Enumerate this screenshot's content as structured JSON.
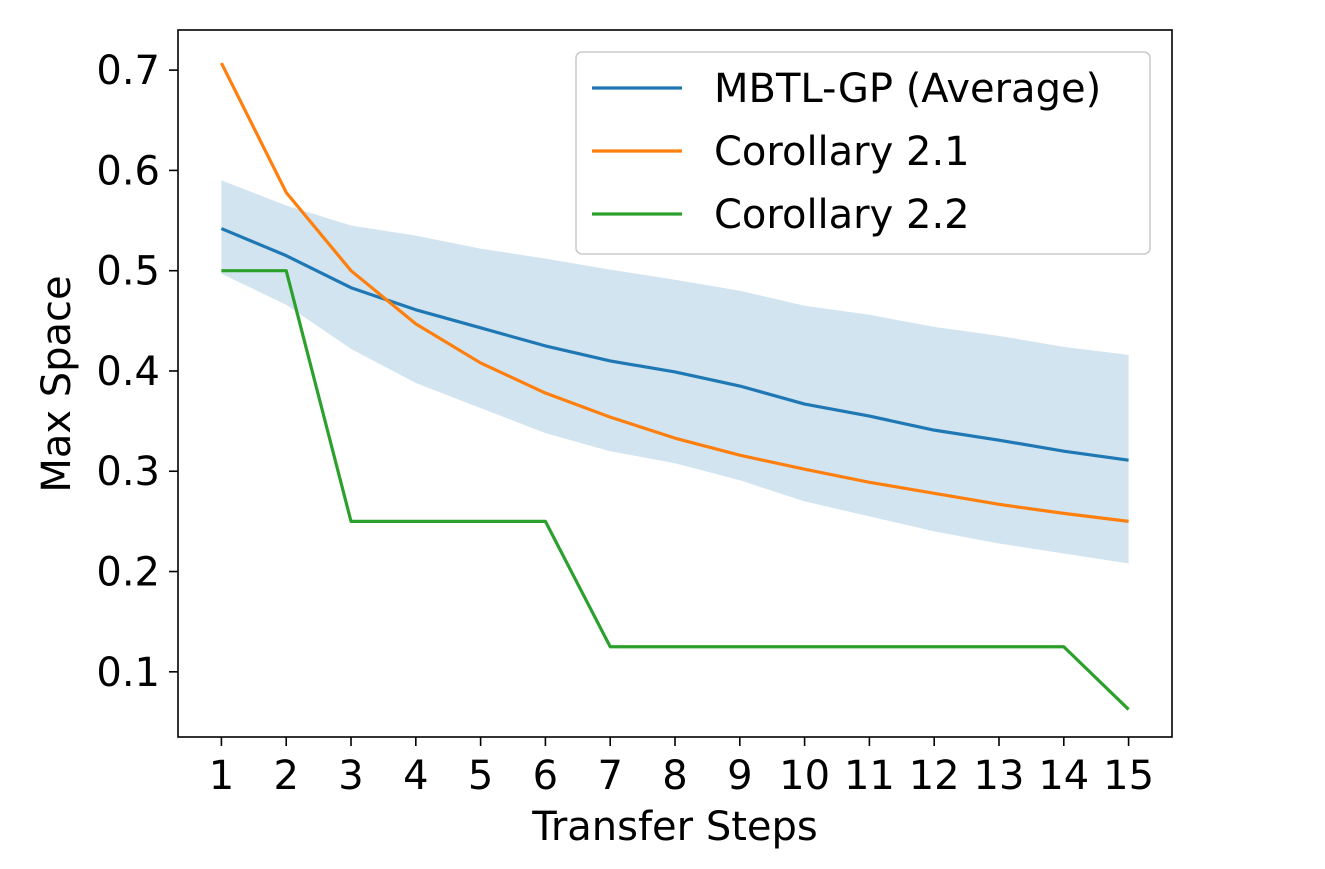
{
  "chart_data": {
    "type": "line",
    "title": "",
    "xlabel": "Transfer Steps",
    "ylabel": "Max Space",
    "x": [
      1,
      2,
      3,
      4,
      5,
      6,
      7,
      8,
      9,
      10,
      11,
      12,
      13,
      14,
      15
    ],
    "xlim": [
      0.33,
      15.67
    ],
    "ylim": [
      0.035,
      0.74
    ],
    "yticks": [
      0.1,
      0.2,
      0.3,
      0.4,
      0.5,
      0.6,
      0.7
    ],
    "ytick_labels": [
      "0.1",
      "0.2",
      "0.3",
      "0.4",
      "0.5",
      "0.6",
      "0.7"
    ],
    "xtick_labels": [
      "1",
      "2",
      "3",
      "4",
      "5",
      "6",
      "7",
      "8",
      "9",
      "10",
      "11",
      "12",
      "13",
      "14",
      "15"
    ],
    "grid": false,
    "legend_position": "top-right",
    "series": [
      {
        "name": "MBTL-GP (Average)",
        "color": "#1f77b4",
        "values": [
          0.542,
          0.515,
          0.483,
          0.461,
          0.443,
          0.425,
          0.41,
          0.399,
          0.385,
          0.367,
          0.355,
          0.341,
          0.331,
          0.32,
          0.311
        ],
        "band_upper": [
          0.59,
          0.565,
          0.545,
          0.535,
          0.522,
          0.512,
          0.501,
          0.491,
          0.48,
          0.465,
          0.456,
          0.444,
          0.435,
          0.424,
          0.416
        ],
        "band_lower": [
          0.497,
          0.466,
          0.422,
          0.388,
          0.363,
          0.338,
          0.32,
          0.308,
          0.291,
          0.27,
          0.255,
          0.24,
          0.228,
          0.218,
          0.208
        ],
        "band_color": "#1f77b4"
      },
      {
        "name": "Corollary 2.1",
        "color": "#ff7f0e",
        "values": [
          0.707,
          0.578,
          0.5,
          0.447,
          0.408,
          0.378,
          0.354,
          0.333,
          0.316,
          0.302,
          0.289,
          0.278,
          0.267,
          0.258,
          0.25
        ]
      },
      {
        "name": "Corollary 2.2",
        "color": "#2ca02c",
        "values": [
          0.5,
          0.5,
          0.25,
          0.25,
          0.25,
          0.25,
          0.125,
          0.125,
          0.125,
          0.125,
          0.125,
          0.125,
          0.125,
          0.125,
          0.0625
        ]
      }
    ]
  }
}
